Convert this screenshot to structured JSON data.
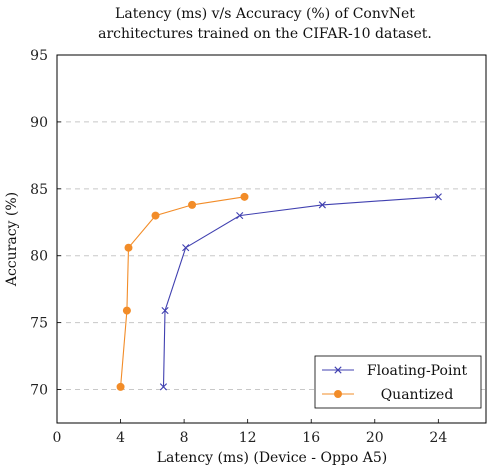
{
  "chart_data": {
    "type": "line",
    "title": [
      "Latency (ms) v/s Accuracy (%) of ConvNet",
      "architectures trained on the CIFAR-10 dataset."
    ],
    "xlabel": "Latency (ms) (Device - Oppo A5)",
    "ylabel": "Accuracy (%)",
    "xlim": [
      0,
      27
    ],
    "ylim": [
      67.5,
      95
    ],
    "xticks": [
      0,
      4,
      8,
      12,
      16,
      20,
      24
    ],
    "yticks": [
      70,
      75,
      80,
      85,
      90,
      95
    ],
    "grid": "horizontal-dashed",
    "legend_position": "bottom-right",
    "series": [
      {
        "name": "Floating-Point",
        "color": "#4040b0",
        "marker": "x",
        "points": [
          [
            6.7,
            70.2
          ],
          [
            6.8,
            75.9
          ],
          [
            8.1,
            80.6
          ],
          [
            11.5,
            83.0
          ],
          [
            16.7,
            83.8
          ],
          [
            24.0,
            84.4
          ]
        ]
      },
      {
        "name": "Quantized",
        "color": "#f28c28",
        "marker": "circle",
        "points": [
          [
            4.0,
            70.2
          ],
          [
            4.4,
            75.9
          ],
          [
            4.5,
            80.6
          ],
          [
            6.2,
            83.0
          ],
          [
            8.5,
            83.8
          ],
          [
            11.8,
            84.4
          ]
        ]
      }
    ]
  }
}
